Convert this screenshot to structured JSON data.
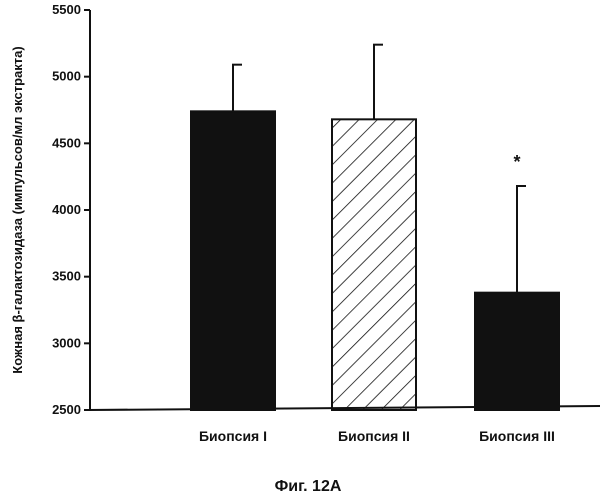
{
  "chart_data": {
    "type": "bar",
    "categories": [
      "Биопсия I",
      "Биопсия II",
      "Биопсия III"
    ],
    "values": [
      4740,
      4680,
      3380
    ],
    "error_upper": [
      5090,
      5240,
      4180
    ],
    "bar_styles": [
      "solid",
      "hatched",
      "solid"
    ],
    "ylabel": "Кожная β-галактозидаза (импульсов/мл экстракта)",
    "xlabel": "",
    "ylim": [
      2500,
      5500
    ],
    "yticks": [
      2500,
      3000,
      3500,
      4000,
      4500,
      5000,
      5500
    ],
    "annotations": [
      {
        "category": "Биопсия III",
        "text": "*"
      }
    ],
    "grid": false,
    "legend": "none"
  },
  "caption": "Фиг. 12А",
  "colors": {
    "bar_fill": "#111111",
    "axis": "#111111",
    "background": "#ffffff"
  }
}
